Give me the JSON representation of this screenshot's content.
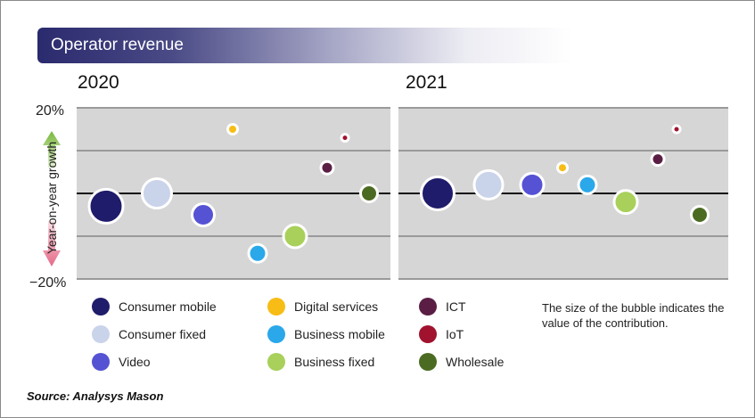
{
  "header": {
    "title": "Operator revenue"
  },
  "panels": [
    {
      "title": "2020"
    },
    {
      "title": "2021"
    }
  ],
  "yaxis": {
    "label": "Year-on-year growth",
    "top_tick": "20%",
    "bottom_tick": "−20%"
  },
  "note": "The size of the bubble indicates the value of the contribution.",
  "source": "Source: Analysys Mason",
  "colors": {
    "Consumer mobile": "#1f1c6b",
    "Consumer fixed": "#c9d3ea",
    "Video": "#5552d4",
    "Digital services": "#f7bd16",
    "Business mobile": "#2aa8ea",
    "Business fixed": "#a8d05a",
    "ICT": "#5a1e44",
    "IoT": "#a0122e",
    "Wholesale": "#4c6b22"
  },
  "legend": [
    {
      "label": "Consumer mobile"
    },
    {
      "label": "Consumer fixed"
    },
    {
      "label": "Video"
    },
    {
      "label": "Digital services"
    },
    {
      "label": "Business mobile"
    },
    {
      "label": "Business fixed"
    },
    {
      "label": "ICT"
    },
    {
      "label": "IoT"
    },
    {
      "label": "Wholesale"
    }
  ],
  "chart_data": [
    {
      "type": "scatter",
      "title": "2020",
      "ylabel": "Year-on-year growth",
      "ylim": [
        -20,
        20
      ],
      "grid": true,
      "points": [
        {
          "series": "Consumer mobile",
          "y": -3,
          "size": 34
        },
        {
          "series": "Consumer fixed",
          "y": 0,
          "size": 29
        },
        {
          "series": "Video",
          "y": -5,
          "size": 21
        },
        {
          "series": "Digital services",
          "y": 15,
          "size": 7
        },
        {
          "series": "Business mobile",
          "y": -14,
          "size": 16
        },
        {
          "series": "Business fixed",
          "y": -10,
          "size": 22
        },
        {
          "series": "ICT",
          "y": 6,
          "size": 10
        },
        {
          "series": "IoT",
          "y": 13,
          "size": 4
        },
        {
          "series": "Wholesale",
          "y": 0,
          "size": 15
        }
      ]
    },
    {
      "type": "scatter",
      "title": "2021",
      "ylabel": "Year-on-year growth",
      "ylim": [
        -20,
        20
      ],
      "grid": true,
      "points": [
        {
          "series": "Consumer mobile",
          "y": 0,
          "size": 33
        },
        {
          "series": "Consumer fixed",
          "y": 2,
          "size": 28
        },
        {
          "series": "Video",
          "y": 2,
          "size": 22
        },
        {
          "series": "Digital services",
          "y": 6,
          "size": 7
        },
        {
          "series": "Business mobile",
          "y": 2,
          "size": 16
        },
        {
          "series": "Business fixed",
          "y": -2,
          "size": 22
        },
        {
          "series": "ICT",
          "y": 8,
          "size": 10
        },
        {
          "series": "IoT",
          "y": 15,
          "size": 4
        },
        {
          "series": "Wholesale",
          "y": -5,
          "size": 15
        }
      ]
    }
  ]
}
